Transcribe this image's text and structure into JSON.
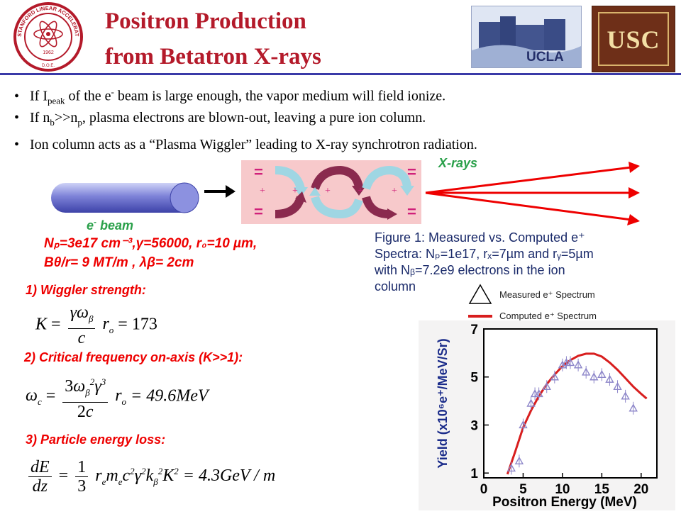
{
  "header": {
    "title_line1": "Positron Production",
    "title_line2": "from Betatron X-rays",
    "ucla_label": "UCLA",
    "usc_label": "USC",
    "slac_seal_text": "STANFORD LINEAR ACCELERATOR CENTER",
    "slac_seal_year": "1962",
    "slac_seal_bottom": "D.O.E."
  },
  "bullets": {
    "b1_a": "If I",
    "b1_sub": "peak",
    "b1_b": " of the e",
    "b1_sup": "-",
    "b1_c": " beam is large enough, the vapor medium will field ionize.",
    "b2_a": "If n",
    "b2_sub1": "b",
    "b2_b": ">>n",
    "b2_sub2": "p",
    "b2_c": ", plasma electrons are blown-out, leaving a pure ion column.",
    "b3": "Ion column acts as a “Plasma Wiggler” leading to X-ray synchrotron radiation."
  },
  "diagram": {
    "xrays_label": "X-rays",
    "beam_label_a": "e",
    "beam_label_sup": "-",
    "beam_label_b": " beam",
    "eq_sign": "=",
    "plus_sign": "+"
  },
  "params": {
    "line1": "Nₚ=3e17 cm⁻³,γ=56000, r₀=10 µm,",
    "line2": "Bθ/r= 9 MT/m ,  λβ= 2cm"
  },
  "sections": {
    "s1": "1) Wiggler strength:",
    "s2": "2) Critical frequency on-axis (K>>1):",
    "s3": "3) Particle energy loss:"
  },
  "equations": {
    "eq1_result": "= 173",
    "eq2_result": "= 49.6MeV",
    "eq3_result": "= 4.3GeV / m"
  },
  "caption": {
    "line1": "Figure 1: Measured vs. Computed e⁺",
    "line2": "Spectra: Nₚ=1e17, rₓ=7µm and rᵧ=5µm",
    "line3": "with Nᵦ=7.2e9 electrons in the ion",
    "line4": "column"
  },
  "legend": {
    "measured": "Measured e⁺ Spectrum",
    "computed": "Computed e⁺ Spectrum"
  },
  "chart_data": {
    "type": "scatter",
    "xlabel": "Positron Energy (MeV)",
    "ylabel": "Yield (x10⁶e⁺/MeV/Sr)",
    "xlim": [
      0,
      22
    ],
    "ylim": [
      0.8,
      7
    ],
    "x_ticks": [
      "0",
      "5",
      "10",
      "15",
      "20"
    ],
    "y_ticks": [
      "1",
      "3",
      "5",
      "7"
    ],
    "series": [
      {
        "name": "Measured e⁺ Spectrum",
        "marker": "triangle",
        "x": [
          3.5,
          4.5,
          5.0,
          6.0,
          6.5,
          7.0,
          8.0,
          9.0,
          10.0,
          10.5,
          11.0,
          12.0,
          13.0,
          14.0,
          15.0,
          16.0,
          17.0,
          18.0,
          19.0
        ],
        "y": [
          1.2,
          1.5,
          3.0,
          3.9,
          4.3,
          4.3,
          4.6,
          5.0,
          5.5,
          5.6,
          5.6,
          5.5,
          5.2,
          5.0,
          5.1,
          4.9,
          4.6,
          4.2,
          3.7
        ]
      },
      {
        "name": "Computed e⁺ Spectrum",
        "type": "line",
        "x": [
          3.0,
          4.0,
          5.0,
          6.0,
          7.0,
          8.0,
          9.0,
          10.0,
          11.0,
          12.0,
          13.0,
          14.0,
          15.0,
          16.0,
          17.0,
          18.0,
          19.0,
          20.0,
          20.7
        ],
        "y": [
          0.95,
          1.9,
          2.9,
          3.6,
          4.2,
          4.7,
          5.1,
          5.45,
          5.7,
          5.88,
          5.97,
          5.97,
          5.85,
          5.6,
          5.3,
          4.95,
          4.6,
          4.3,
          4.1
        ]
      }
    ],
    "colors": {
      "measured": "#8d86c9",
      "computed": "#d81e1e"
    }
  }
}
